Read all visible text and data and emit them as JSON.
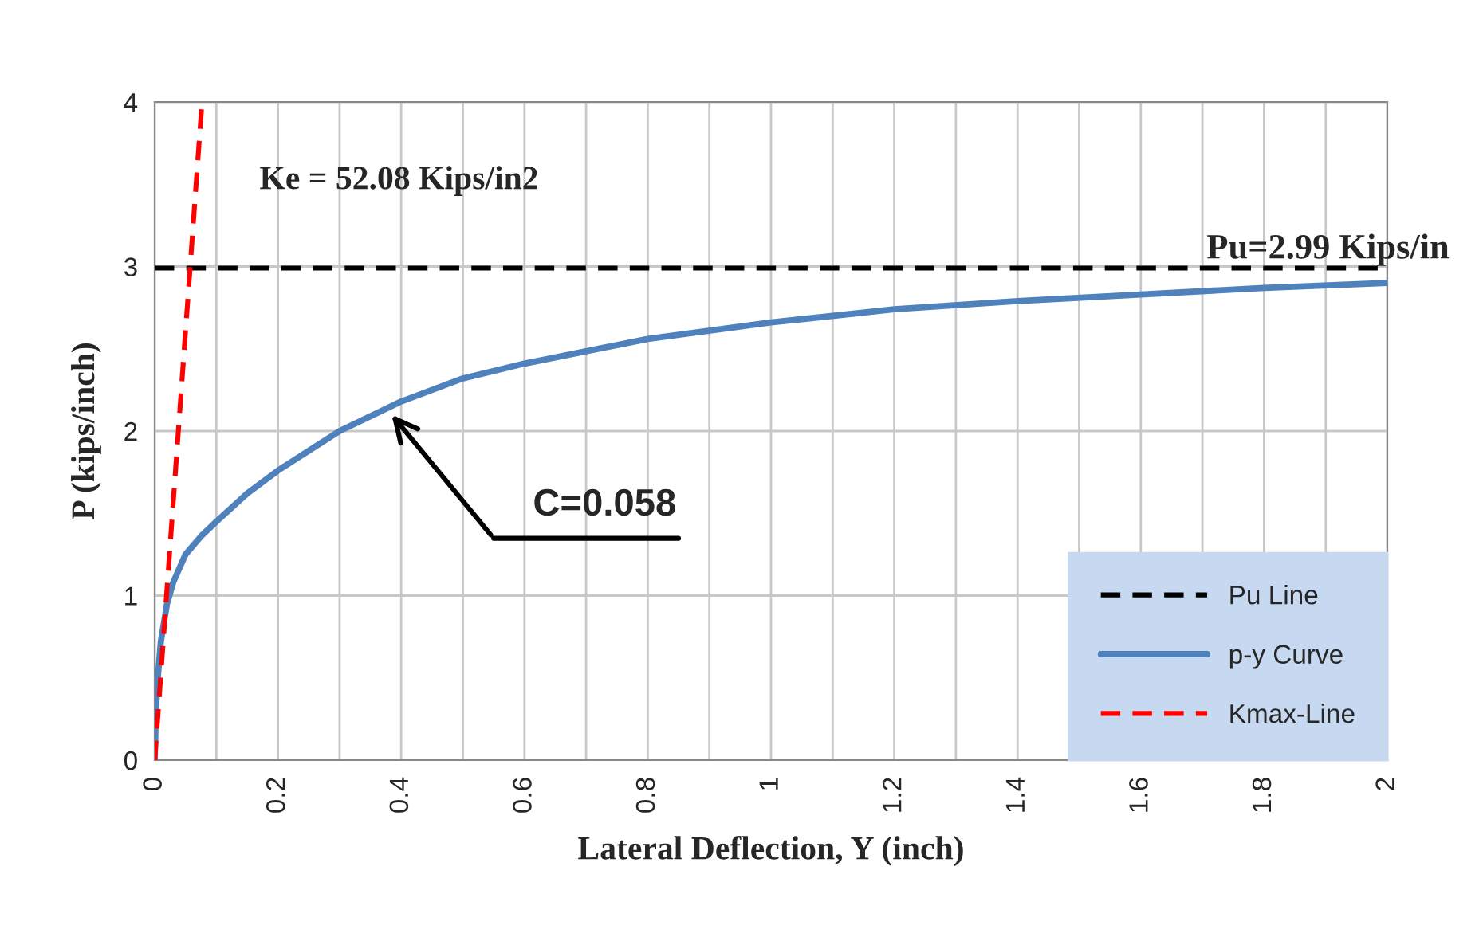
{
  "chart_data": {
    "type": "line",
    "xlabel": "Lateral Deflection, Y (inch)",
    "ylabel": "P (kips/inch)",
    "series": [
      {
        "name": "Pu Line",
        "color": "#000000",
        "line_style": "dashed",
        "x": [
          0,
          2
        ],
        "values": [
          2.99,
          2.99
        ]
      },
      {
        "name": "p-y Curve",
        "color": "#4f81bd",
        "line_style": "solid",
        "x": [
          0,
          0.002,
          0.005,
          0.01,
          0.02,
          0.03,
          0.05,
          0.075,
          0.1,
          0.15,
          0.2,
          0.3,
          0.4,
          0.5,
          0.6,
          0.8,
          1.0,
          1.2,
          1.4,
          1.6,
          1.8,
          2.0
        ],
        "values": [
          0,
          0.3,
          0.5,
          0.72,
          0.95,
          1.08,
          1.25,
          1.36,
          1.45,
          1.62,
          1.76,
          2.0,
          2.18,
          2.32,
          2.41,
          2.56,
          2.66,
          2.74,
          2.79,
          2.83,
          2.87,
          2.9
        ]
      },
      {
        "name": "Kmax-Line",
        "color": "#ff0000",
        "line_style": "dashed",
        "x": [
          0,
          0.0768
        ],
        "values": [
          0,
          4
        ]
      }
    ],
    "annotations": [
      "Ke = 52.08 Kips/in2",
      {
        "text": "Pu=2.99 Kips/in",
        "x": 2,
        "y": 2.99
      },
      "C=0.058"
    ],
    "xlim": [
      0,
      2
    ],
    "ylim": [
      0,
      4
    ],
    "xticks": [
      0,
      {
        "value": 0.1,
        "label": null
      },
      0.2,
      {
        "value": 0.3,
        "label": null
      },
      0.4,
      {
        "value": 0.5,
        "label": null
      },
      0.6,
      {
        "value": 0.7,
        "label": null
      },
      0.8,
      {
        "value": 0.9,
        "label": null
      },
      1,
      {
        "value": 1.1,
        "label": null
      },
      1.2,
      {
        "value": 1.3,
        "label": null
      },
      1.4,
      {
        "value": 1.5,
        "label": null
      },
      1.6,
      {
        "value": 1.7,
        "label": null
      },
      1.8,
      {
        "value": 1.9,
        "label": null
      },
      2
    ],
    "yticks": [
      0,
      1,
      2,
      3,
      4
    ],
    "grid": true,
    "legend": "bottom right",
    "marker": "none"
  }
}
